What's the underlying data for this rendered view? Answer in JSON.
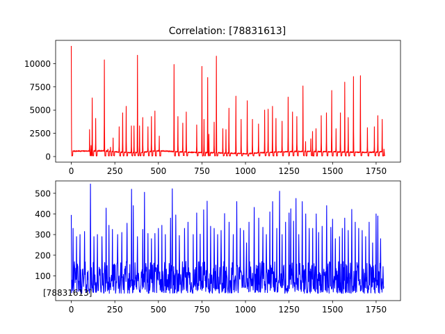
{
  "figure": {
    "title": "Correlation: [78831613]",
    "corner_label": "[78831613]"
  },
  "chart_data": [
    {
      "type": "line",
      "title": "Correlation: [78831613]",
      "color": "#ff0000",
      "xlim": [
        -90,
        1890
      ],
      "ylim": [
        -600,
        12500
      ],
      "xticks": [
        0,
        250,
        500,
        750,
        1000,
        1250,
        1500,
        1750
      ],
      "yticks": [
        0,
        2500,
        5000,
        7500,
        10000
      ],
      "baseline": [
        [
          0,
          580
        ],
        [
          120,
          600
        ],
        [
          180,
          620
        ],
        [
          260,
          500
        ],
        [
          340,
          420
        ],
        [
          400,
          450
        ],
        [
          480,
          600
        ],
        [
          520,
          620
        ],
        [
          600,
          520
        ],
        [
          700,
          450
        ],
        [
          800,
          420
        ],
        [
          900,
          380
        ],
        [
          1000,
          300
        ],
        [
          1080,
          400
        ],
        [
          1200,
          500
        ],
        [
          1300,
          560
        ],
        [
          1400,
          550
        ],
        [
          1500,
          500
        ],
        [
          1600,
          480
        ],
        [
          1700,
          450
        ],
        [
          1780,
          500
        ],
        [
          1800,
          500
        ]
      ],
      "peaks": [
        [
          0,
          11900
        ],
        [
          105,
          2900
        ],
        [
          113,
          1200
        ],
        [
          120,
          6300
        ],
        [
          140,
          4100
        ],
        [
          190,
          10400
        ],
        [
          210,
          800
        ],
        [
          225,
          1000
        ],
        [
          240,
          2000
        ],
        [
          275,
          3200
        ],
        [
          295,
          4700
        ],
        [
          315,
          5400
        ],
        [
          345,
          3300
        ],
        [
          360,
          3300
        ],
        [
          380,
          10900
        ],
        [
          392,
          3300
        ],
        [
          410,
          4200
        ],
        [
          440,
          3200
        ],
        [
          460,
          4300
        ],
        [
          480,
          4900
        ],
        [
          505,
          2200
        ],
        [
          590,
          9900
        ],
        [
          612,
          4300
        ],
        [
          640,
          3600
        ],
        [
          660,
          4800
        ],
        [
          720,
          3400
        ],
        [
          750,
          9700
        ],
        [
          762,
          4000
        ],
        [
          783,
          8500
        ],
        [
          790,
          2400
        ],
        [
          820,
          3700
        ],
        [
          833,
          10800
        ],
        [
          870,
          3000
        ],
        [
          888,
          2900
        ],
        [
          905,
          5200
        ],
        [
          945,
          6500
        ],
        [
          975,
          4000
        ],
        [
          1010,
          6000
        ],
        [
          1040,
          4000
        ],
        [
          1075,
          3500
        ],
        [
          1110,
          5000
        ],
        [
          1130,
          5100
        ],
        [
          1155,
          5400
        ],
        [
          1175,
          4100
        ],
        [
          1210,
          3800
        ],
        [
          1245,
          6400
        ],
        [
          1270,
          4800
        ],
        [
          1295,
          4300
        ],
        [
          1330,
          7600
        ],
        [
          1345,
          1600
        ],
        [
          1375,
          1900
        ],
        [
          1385,
          2700
        ],
        [
          1405,
          3000
        ],
        [
          1435,
          4400
        ],
        [
          1465,
          4700
        ],
        [
          1495,
          7100
        ],
        [
          1520,
          3000
        ],
        [
          1545,
          4700
        ],
        [
          1570,
          8000
        ],
        [
          1590,
          4200
        ],
        [
          1620,
          8600
        ],
        [
          1660,
          8700
        ],
        [
          1700,
          3100
        ],
        [
          1740,
          3200
        ],
        [
          1760,
          4400
        ],
        [
          1785,
          4000
        ],
        [
          1795,
          800
        ]
      ]
    },
    {
      "type": "line",
      "title": "",
      "color": "#0000ff",
      "xlim": [
        -90,
        1890
      ],
      "ylim": [
        -20,
        560
      ],
      "xticks": [
        0,
        250,
        500,
        750,
        1000,
        1250,
        1500,
        1750
      ],
      "yticks": [
        100,
        200,
        300,
        400,
        500
      ],
      "noise_range": [
        15,
        170
      ],
      "peaks": [
        [
          0,
          395
        ],
        [
          10,
          330
        ],
        [
          30,
          290
        ],
        [
          50,
          300
        ],
        [
          75,
          315
        ],
        [
          110,
          545
        ],
        [
          130,
          290
        ],
        [
          150,
          300
        ],
        [
          175,
          290
        ],
        [
          200,
          428
        ],
        [
          215,
          345
        ],
        [
          235,
          325
        ],
        [
          265,
          300
        ],
        [
          290,
          310
        ],
        [
          320,
          355
        ],
        [
          345,
          520
        ],
        [
          355,
          440
        ],
        [
          380,
          290
        ],
        [
          410,
          325
        ],
        [
          420,
          505
        ],
        [
          440,
          305
        ],
        [
          460,
          280
        ],
        [
          480,
          305
        ],
        [
          500,
          330
        ],
        [
          520,
          345
        ],
        [
          540,
          300
        ],
        [
          570,
          380
        ],
        [
          580,
          522
        ],
        [
          600,
          395
        ],
        [
          620,
          295
        ],
        [
          650,
          330
        ],
        [
          670,
          360
        ],
        [
          700,
          300
        ],
        [
          720,
          405
        ],
        [
          740,
          302
        ],
        [
          760,
          420
        ],
        [
          780,
          462
        ],
        [
          800,
          340
        ],
        [
          820,
          330
        ],
        [
          840,
          300
        ],
        [
          860,
          320
        ],
        [
          880,
          402
        ],
        [
          905,
          360
        ],
        [
          930,
          300
        ],
        [
          950,
          460
        ],
        [
          970,
          330
        ],
        [
          990,
          320
        ],
        [
          1005,
          260
        ],
        [
          1020,
          360
        ],
        [
          1050,
          432
        ],
        [
          1075,
          380
        ],
        [
          1100,
          335
        ],
        [
          1120,
          300
        ],
        [
          1140,
          410
        ],
        [
          1155,
          460
        ],
        [
          1180,
          330
        ],
        [
          1195,
          510
        ],
        [
          1210,
          300
        ],
        [
          1230,
          360
        ],
        [
          1250,
          405
        ],
        [
          1260,
          425
        ],
        [
          1275,
          365
        ],
        [
          1290,
          475
        ],
        [
          1305,
          300
        ],
        [
          1325,
          460
        ],
        [
          1345,
          400
        ],
        [
          1365,
          330
        ],
        [
          1385,
          330
        ],
        [
          1405,
          400
        ],
        [
          1420,
          310
        ],
        [
          1440,
          340
        ],
        [
          1465,
          440
        ],
        [
          1490,
          335
        ],
        [
          1500,
          375
        ],
        [
          1515,
          280
        ],
        [
          1540,
          290
        ],
        [
          1555,
          330
        ],
        [
          1570,
          380
        ],
        [
          1590,
          320
        ],
        [
          1610,
          422
        ],
        [
          1630,
          360
        ],
        [
          1650,
          330
        ],
        [
          1670,
          320
        ],
        [
          1690,
          290
        ],
        [
          1710,
          360
        ],
        [
          1730,
          260
        ],
        [
          1750,
          400
        ],
        [
          1760,
          390
        ],
        [
          1775,
          280
        ],
        [
          1790,
          145
        ]
      ]
    }
  ]
}
